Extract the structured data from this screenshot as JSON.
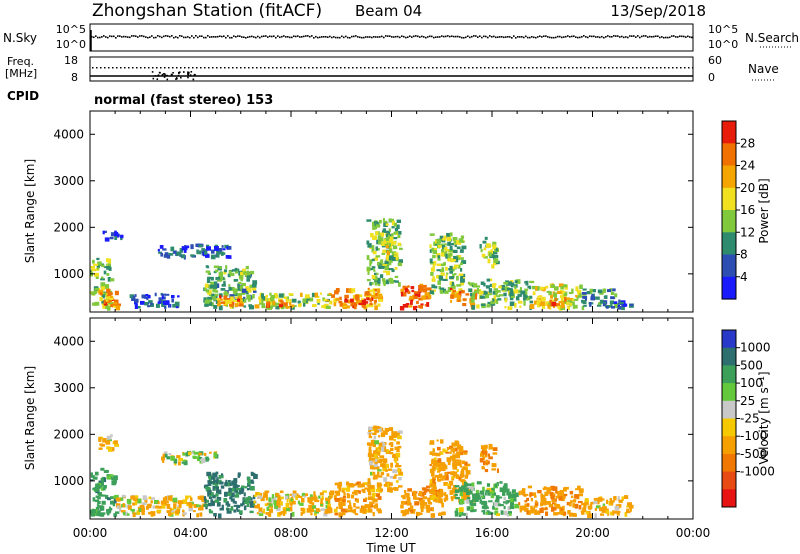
{
  "header": {
    "station": "Zhongshan Station (fitACF)",
    "beam": "Beam 04",
    "date": "13/Sep/2018"
  },
  "noise_panel": {
    "left_label": "N.Sky",
    "left_ticks": [
      "10^5",
      "10^0"
    ],
    "right_ticks": [
      "10^5",
      "10^0"
    ],
    "right_label": "N.Search"
  },
  "freq_panel": {
    "left_label_top": "Freq.",
    "left_label_bottom": "[MHz]",
    "left_ticks": [
      "18",
      "8"
    ],
    "right_ticks": [
      "60",
      "0"
    ],
    "right_label": "Nave"
  },
  "cpid": {
    "label": "CPID",
    "text": "normal (fast stereo) 153"
  },
  "chart_data": [
    {
      "type": "heatmap",
      "panel": "power",
      "ylabel": "Slant Range [km]",
      "ylim": [
        180,
        4500
      ],
      "yticks": [
        1000,
        2000,
        3000,
        4000
      ],
      "xlim": [
        0,
        24
      ],
      "colorbar": {
        "label": "Power [dB]",
        "ticks": [
          "4",
          "8",
          "12",
          "16",
          "20",
          "24",
          "28"
        ],
        "range": [
          0,
          32
        ],
        "colors": [
          "#1a1aff",
          "#2d4fb4",
          "#2e8b6e",
          "#80c83c",
          "#f0e020",
          "#f5a500",
          "#f07000",
          "#e81c0a"
        ]
      },
      "echo_regions": [
        {
          "t": [
            0.0,
            0.8
          ],
          "r": [
            300,
            1350
          ],
          "dB": 14
        },
        {
          "t": [
            0.3,
            1.1
          ],
          "r": [
            300,
            700
          ],
          "dB": 24
        },
        {
          "t": [
            0.5,
            1.2
          ],
          "r": [
            1750,
            1950
          ],
          "dB": 6
        },
        {
          "t": [
            1.5,
            3.5
          ],
          "r": [
            300,
            600
          ],
          "dB": 6
        },
        {
          "t": [
            2.5,
            5.5
          ],
          "r": [
            1400,
            1650
          ],
          "dB": 7
        },
        {
          "t": [
            4.5,
            6.5
          ],
          "r": [
            300,
            1200
          ],
          "dB": 12
        },
        {
          "t": [
            5.0,
            6.0
          ],
          "r": [
            300,
            550
          ],
          "dB": 24
        },
        {
          "t": [
            6.5,
            9.5
          ],
          "r": [
            300,
            600
          ],
          "dB": 16
        },
        {
          "t": [
            7.0,
            8.0
          ],
          "r": [
            300,
            450
          ],
          "dB": 27
        },
        {
          "t": [
            9.5,
            11.5
          ],
          "r": [
            300,
            700
          ],
          "dB": 22
        },
        {
          "t": [
            10.0,
            11.2
          ],
          "r": [
            300,
            500
          ],
          "dB": 28
        },
        {
          "t": [
            11.0,
            12.3
          ],
          "r": [
            800,
            2200
          ],
          "dB": 13
        },
        {
          "t": [
            11.6,
            12.0
          ],
          "r": [
            1500,
            1900
          ],
          "dB": 18
        },
        {
          "t": [
            12.3,
            13.5
          ],
          "r": [
            300,
            800
          ],
          "dB": 26
        },
        {
          "t": [
            13.5,
            14.8
          ],
          "r": [
            600,
            1900
          ],
          "dB": 14
        },
        {
          "t": [
            14.3,
            15.3
          ],
          "r": [
            300,
            700
          ],
          "dB": 25
        },
        {
          "t": [
            15.5,
            16.2
          ],
          "r": [
            1200,
            1800
          ],
          "dB": 14
        },
        {
          "t": [
            15.0,
            17.5
          ],
          "r": [
            300,
            900
          ],
          "dB": 13
        },
        {
          "t": [
            17.5,
            19.5
          ],
          "r": [
            300,
            800
          ],
          "dB": 17
        },
        {
          "t": [
            18.2,
            19.0
          ],
          "r": [
            300,
            500
          ],
          "dB": 26
        },
        {
          "t": [
            19.5,
            21.0
          ],
          "r": [
            300,
            700
          ],
          "dB": 10
        },
        {
          "t": [
            20.5,
            21.5
          ],
          "r": [
            300,
            450
          ],
          "dB": 6
        }
      ]
    },
    {
      "type": "heatmap",
      "panel": "velocity",
      "ylabel": "Slant Range [km]",
      "ylim": [
        180,
        4500
      ],
      "yticks": [
        1000,
        2000,
        3000,
        4000
      ],
      "xlabel": "Time UT",
      "xlim": [
        0,
        24
      ],
      "xticks": [
        "00:00",
        "04:00",
        "08:00",
        "12:00",
        "16:00",
        "20:00",
        "00:00"
      ],
      "colorbar": {
        "label": "Velocity [m s⁻¹]",
        "ticks": [
          "1000",
          "500",
          "100",
          "25",
          "-25",
          "-100",
          "-500",
          "-1000"
        ],
        "colors": [
          "#2838c8",
          "#2d6e6e",
          "#3ca05a",
          "#64c83c",
          "#c8c8c8",
          "#f5c800",
          "#f5a000",
          "#f07800",
          "#e84a14",
          "#e81414"
        ]
      },
      "echo_regions": [
        {
          "t": [
            0.0,
            1.0
          ],
          "r": [
            300,
            1300
          ],
          "v": 300
        },
        {
          "t": [
            0.3,
            1.0
          ],
          "r": [
            1700,
            2000
          ],
          "v": -200
        },
        {
          "t": [
            1.0,
            4.5
          ],
          "r": [
            300,
            700
          ],
          "v": -150
        },
        {
          "t": [
            2.8,
            5.0
          ],
          "r": [
            1400,
            1650
          ],
          "v": 0
        },
        {
          "t": [
            4.5,
            6.5
          ],
          "r": [
            300,
            1200
          ],
          "v": 600
        },
        {
          "t": [
            6.5,
            9.5
          ],
          "r": [
            300,
            800
          ],
          "v": -150
        },
        {
          "t": [
            9.5,
            11.5
          ],
          "r": [
            300,
            1000
          ],
          "v": -300
        },
        {
          "t": [
            11.0,
            12.3
          ],
          "r": [
            800,
            2200
          ],
          "v": -200
        },
        {
          "t": [
            12.3,
            14.0
          ],
          "r": [
            300,
            900
          ],
          "v": -400
        },
        {
          "t": [
            13.5,
            15.0
          ],
          "r": [
            600,
            1900
          ],
          "v": -300
        },
        {
          "t": [
            14.5,
            17.0
          ],
          "r": [
            300,
            1000
          ],
          "v": 200
        },
        {
          "t": [
            15.5,
            16.2
          ],
          "r": [
            1200,
            1800
          ],
          "v": -400
        },
        {
          "t": [
            17.0,
            19.5
          ],
          "r": [
            300,
            900
          ],
          "v": -400
        },
        {
          "t": [
            19.5,
            21.5
          ],
          "r": [
            300,
            700
          ],
          "v": -200
        }
      ]
    }
  ]
}
